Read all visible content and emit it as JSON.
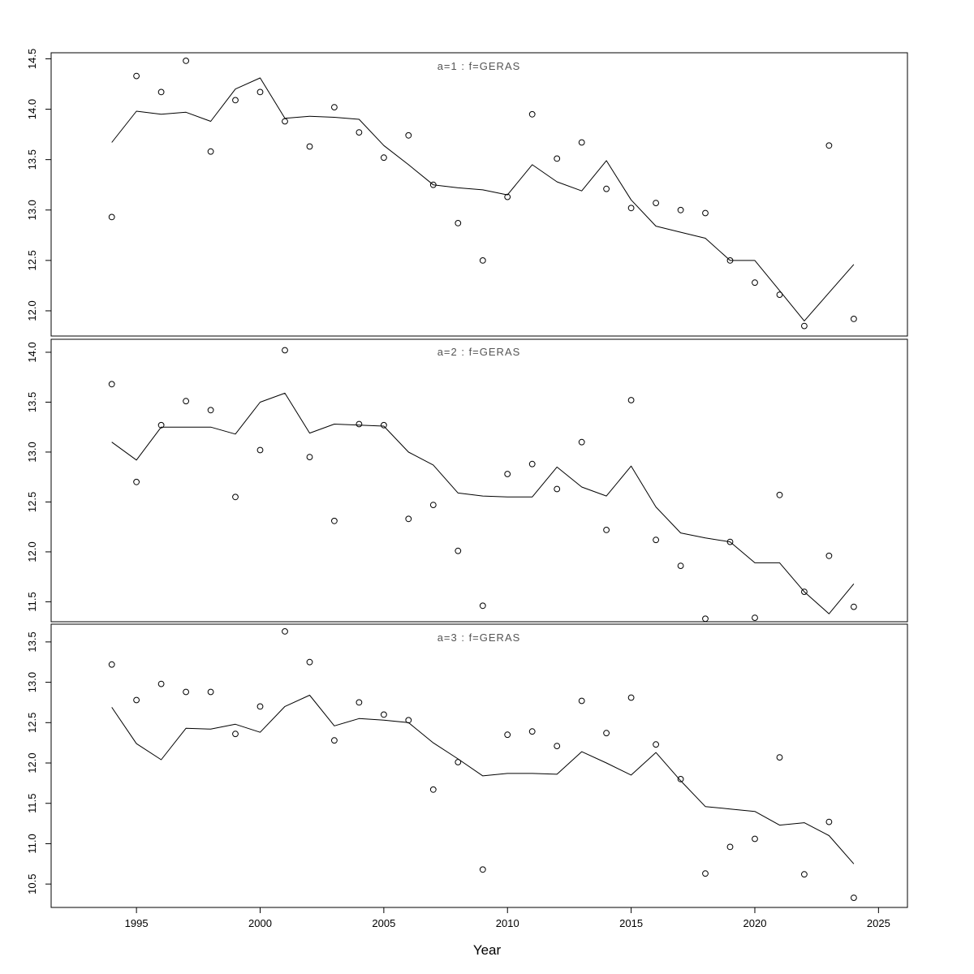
{
  "figure": {
    "background": "#ffffff",
    "line_color": "#000000",
    "point_color": "#000000",
    "title_color": "#555555"
  },
  "chart_data": {
    "type": "scatter",
    "description": "Three stacked panels of observed points (open circles) and fitted line vs year",
    "xlabel": "Year",
    "xlim": [
      1991.55,
      2026.17
    ],
    "x_ticks": [
      "1995",
      "2000",
      "2005",
      "2010",
      "2015",
      "2020",
      "2025"
    ],
    "years": [
      1994,
      1995,
      1996,
      1997,
      1998,
      1999,
      2000,
      2001,
      2002,
      2003,
      2004,
      2005,
      2006,
      2007,
      2008,
      2009,
      2010,
      2011,
      2012,
      2013,
      2014,
      2015,
      2016,
      2017,
      2018,
      2019,
      2020,
      2021,
      2022,
      2023,
      2024
    ],
    "panels": [
      {
        "title": "a=1 : f=GERAS",
        "ylim": [
          11.75,
          14.56
        ],
        "y_ticks": [
          "12.0",
          "12.5",
          "13.0",
          "13.5",
          "14.0",
          "14.5"
        ],
        "points": [
          12.93,
          14.33,
          14.17,
          14.48,
          13.58,
          14.09,
          14.17,
          13.88,
          13.63,
          14.02,
          13.77,
          13.52,
          13.74,
          13.25,
          12.87,
          12.5,
          13.13,
          13.95,
          13.51,
          13.67,
          13.21,
          13.02,
          13.07,
          13.0,
          12.97,
          12.5,
          12.28,
          12.16,
          11.85,
          13.64,
          11.92
        ],
        "line": [
          13.67,
          13.98,
          13.95,
          13.97,
          13.88,
          14.2,
          14.31,
          13.91,
          13.93,
          13.92,
          13.9,
          13.64,
          13.45,
          13.25,
          13.22,
          13.2,
          13.15,
          13.45,
          13.28,
          13.19,
          13.49,
          13.1,
          12.84,
          12.78,
          12.72,
          12.5,
          12.5,
          12.2,
          11.9,
          12.18,
          12.46
        ]
      },
      {
        "title": "a=2 : f=GERAS",
        "ylim": [
          11.3,
          14.13
        ],
        "y_ticks": [
          "11.5",
          "12.0",
          "12.5",
          "13.0",
          "13.5",
          "14.0"
        ],
        "points": [
          13.68,
          12.7,
          13.27,
          13.51,
          13.42,
          12.55,
          13.02,
          14.02,
          12.95,
          12.31,
          13.28,
          13.27,
          12.33,
          12.47,
          12.01,
          11.46,
          12.78,
          12.88,
          12.63,
          13.1,
          12.22,
          13.52,
          12.12,
          11.86,
          11.33,
          12.1,
          11.34,
          12.57,
          11.6,
          11.96,
          11.45
        ],
        "line": [
          13.1,
          12.92,
          13.25,
          13.25,
          13.25,
          13.18,
          13.5,
          13.59,
          13.19,
          13.28,
          13.27,
          13.26,
          13.0,
          12.87,
          12.59,
          12.56,
          12.55,
          12.55,
          12.85,
          12.65,
          12.56,
          12.86,
          12.45,
          12.19,
          12.14,
          12.1,
          11.89,
          11.89,
          11.6,
          11.38,
          11.68
        ]
      },
      {
        "title": "a=3 : f=GERAS",
        "ylim": [
          10.21,
          13.72
        ],
        "y_ticks": [
          "10.5",
          "11.0",
          "11.5",
          "12.0",
          "12.5",
          "13.0",
          "13.5"
        ],
        "points": [
          13.22,
          12.78,
          12.98,
          12.88,
          12.88,
          12.36,
          12.7,
          13.63,
          13.25,
          12.28,
          12.75,
          12.6,
          12.53,
          11.67,
          12.01,
          10.68,
          12.35,
          12.39,
          12.21,
          12.77,
          12.37,
          12.81,
          12.23,
          11.8,
          10.63,
          10.96,
          11.06,
          12.07,
          10.62,
          11.27,
          10.33
        ],
        "line": [
          12.69,
          12.24,
          12.04,
          12.43,
          12.42,
          12.48,
          12.38,
          12.7,
          12.84,
          12.46,
          12.55,
          12.53,
          12.5,
          12.25,
          12.05,
          11.84,
          11.87,
          11.87,
          11.86,
          12.14,
          12.0,
          11.85,
          12.13,
          11.78,
          11.46,
          11.43,
          11.4,
          11.23,
          11.26,
          11.1,
          10.75
        ]
      }
    ],
    "legend": null,
    "grid": false
  }
}
